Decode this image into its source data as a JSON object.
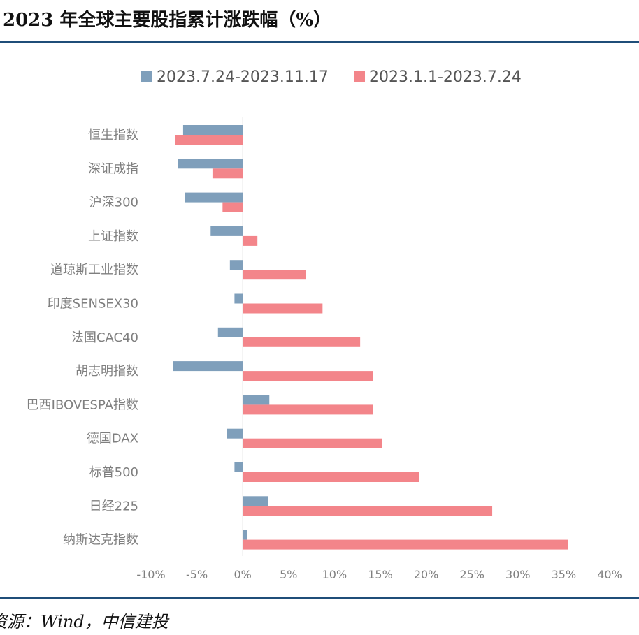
{
  "title": "2023 年全球主要股指累计涨跌幅（%）",
  "source": "资源：Wind，中信建投",
  "chart_data": {
    "type": "bar",
    "orientation": "horizontal",
    "categories": [
      "恒生指数",
      "深证成指",
      "沪深300",
      "上证指数",
      "道琼斯工业指数",
      "印度SENSEX30",
      "法国CAC40",
      "胡志明指数",
      "巴西IBOVESPA指数",
      "德国DAX",
      "标普500",
      "日经225",
      "纳斯达克指数"
    ],
    "series": [
      {
        "name": "2023.7.24-2023.11.17",
        "color": "#7f9fbb",
        "values": [
          -6.5,
          -7.1,
          -6.3,
          -3.5,
          -1.4,
          -0.9,
          -2.7,
          -7.6,
          2.9,
          -1.7,
          -0.9,
          2.8,
          0.5
        ]
      },
      {
        "name": "2023.1.1-2023.7.24",
        "color": "#f3858a",
        "values": [
          -7.4,
          -3.3,
          -2.2,
          1.6,
          6.9,
          8.7,
          12.8,
          14.2,
          14.2,
          15.2,
          19.2,
          27.2,
          35.5
        ]
      }
    ],
    "xlim": [
      -10,
      40
    ],
    "xticks": [
      -10,
      -5,
      0,
      5,
      10,
      15,
      20,
      25,
      30,
      35,
      40
    ],
    "xtick_labels": [
      "-10%",
      "-5%",
      "0%",
      "5%",
      "10%",
      "15%",
      "20%",
      "25%",
      "30%",
      "35%",
      "40%"
    ],
    "legend_position": "top",
    "grid": false,
    "xlabel": "",
    "ylabel": ""
  }
}
